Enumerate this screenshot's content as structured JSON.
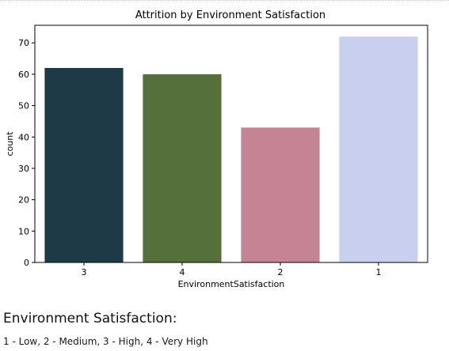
{
  "chart_data": {
    "type": "bar",
    "title": "Attrition by Environment Satisfaction",
    "xlabel": "EnvironmentSatisfaction",
    "ylabel": "count",
    "categories": [
      "3",
      "4",
      "2",
      "1"
    ],
    "values": [
      62,
      60,
      43,
      72
    ],
    "colors": [
      "#1f3a47",
      "#55703b",
      "#c48494",
      "#c9cfee"
    ],
    "ylim": [
      0,
      75.6
    ],
    "yticks": [
      0,
      10,
      20,
      30,
      40,
      50,
      60,
      70
    ],
    "grid": false,
    "legend": "none"
  },
  "notes": {
    "heading": "Environment Satisfaction:",
    "scale": "1 - Low, 2 - Medium, 3 - High, 4 - Very High"
  }
}
